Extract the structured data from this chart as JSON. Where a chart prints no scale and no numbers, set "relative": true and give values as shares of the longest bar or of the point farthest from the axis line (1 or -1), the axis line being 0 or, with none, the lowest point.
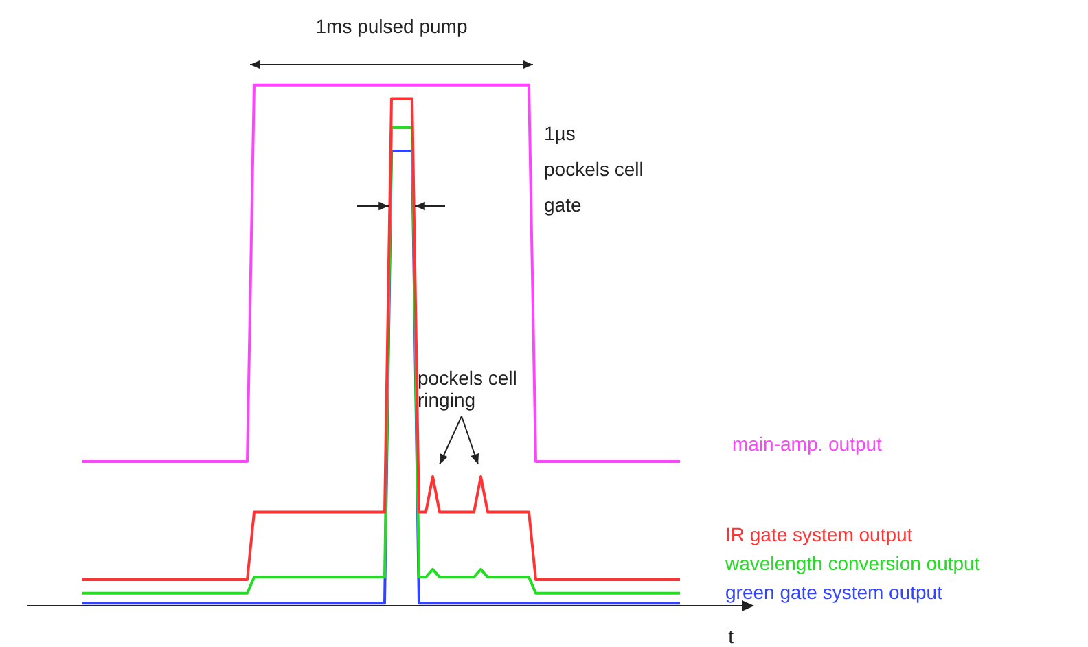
{
  "chart_data": {
    "type": "line",
    "relative": true,
    "xlabel": "t",
    "tick_labels": false,
    "grid": false,
    "marker": "none",
    "line_style": "solid",
    "categories": [
      null,
      null,
      null,
      null,
      null,
      null,
      null,
      null,
      null,
      null,
      null,
      null,
      null,
      null,
      null,
      null,
      null,
      null,
      null,
      null,
      null,
      null,
      null,
      null,
      null,
      null,
      null,
      null,
      null,
      null,
      null,
      null,
      null,
      null,
      null,
      null,
      null,
      null,
      null,
      null,
      null,
      null,
      null,
      null,
      null,
      null,
      null,
      null,
      null,
      null,
      null,
      null,
      null,
      null,
      null,
      null,
      null,
      null,
      null,
      null,
      null,
      null,
      null,
      null,
      null,
      null,
      null,
      null,
      null,
      null,
      null,
      null,
      null,
      null,
      null,
      null,
      null,
      null,
      null,
      null,
      null,
      null,
      null,
      null,
      null,
      null,
      null,
      null
    ],
    "series": [
      {
        "name": "main-amp. output",
        "color": "#ff44ff",
        "values": [
          0.277,
          0.277,
          0.277,
          0.277,
          0.277,
          0.277,
          0.277,
          0.277,
          0.277,
          0.277,
          0.277,
          0.277,
          0.277,
          0.277,
          0.277,
          0.277,
          0.277,
          0.277,
          0.277,
          0.277,
          0.277,
          0.277,
          0.277,
          0.277,
          0.277,
          1,
          1,
          1,
          1,
          1,
          1,
          1,
          1,
          1,
          1,
          1,
          1,
          1,
          1,
          1,
          1,
          1,
          1,
          1,
          1,
          1,
          1,
          1,
          1,
          1,
          1,
          1,
          1,
          1,
          1,
          1,
          1,
          1,
          1,
          1,
          1,
          1,
          1,
          1,
          1,
          1,
          0.277,
          0.277,
          0.277,
          0.277,
          0.277,
          0.277,
          0.277,
          0.277,
          0.277,
          0.277,
          0.277,
          0.277,
          0.277,
          0.277,
          0.277,
          0.277,
          0.277,
          0.277,
          0.277,
          0.277,
          0.277,
          0.277
        ]
      },
      {
        "name": "IR gate system output",
        "color": "#ff3333",
        "values": [
          0.05,
          0.05,
          0.05,
          0.05,
          0.05,
          0.05,
          0.05,
          0.05,
          0.05,
          0.05,
          0.05,
          0.05,
          0.05,
          0.05,
          0.05,
          0.05,
          0.05,
          0.05,
          0.05,
          0.05,
          0.05,
          0.05,
          0.05,
          0.05,
          0.05,
          0.18,
          0.18,
          0.18,
          0.18,
          0.18,
          0.18,
          0.18,
          0.18,
          0.18,
          0.18,
          0.18,
          0.18,
          0.18,
          0.18,
          0.18,
          0.18,
          0.18,
          0.18,
          0.18,
          0.18,
          0.974,
          0.974,
          0.974,
          0.974,
          0.18,
          0.18,
          0.248,
          0.18,
          0.18,
          0.18,
          0.18,
          0.18,
          0.18,
          0.248,
          0.18,
          0.18,
          0.18,
          0.18,
          0.18,
          0.18,
          0.18,
          0.05,
          0.05,
          0.05,
          0.05,
          0.05,
          0.05,
          0.05,
          0.05,
          0.05,
          0.05,
          0.05,
          0.05,
          0.05,
          0.05,
          0.05,
          0.05,
          0.05,
          0.05,
          0.05,
          0.05,
          0.05,
          0.05
        ]
      },
      {
        "name": "wavelength conversion output",
        "color": "#22dd22",
        "values": [
          0.024,
          0.024,
          0.024,
          0.024,
          0.024,
          0.024,
          0.024,
          0.024,
          0.024,
          0.024,
          0.024,
          0.024,
          0.024,
          0.024,
          0.024,
          0.024,
          0.024,
          0.024,
          0.024,
          0.024,
          0.024,
          0.024,
          0.024,
          0.024,
          0.024,
          0.055,
          0.055,
          0.055,
          0.055,
          0.055,
          0.055,
          0.055,
          0.055,
          0.055,
          0.055,
          0.055,
          0.055,
          0.055,
          0.055,
          0.055,
          0.055,
          0.055,
          0.055,
          0.055,
          0.055,
          0.918,
          0.918,
          0.918,
          0.918,
          0.055,
          0.055,
          0.07,
          0.055,
          0.055,
          0.055,
          0.055,
          0.055,
          0.055,
          0.07,
          0.055,
          0.055,
          0.055,
          0.055,
          0.055,
          0.055,
          0.055,
          0.024,
          0.024,
          0.024,
          0.024,
          0.024,
          0.024,
          0.024,
          0.024,
          0.024,
          0.024,
          0.024,
          0.024,
          0.024,
          0.024,
          0.024,
          0.024,
          0.024,
          0.024,
          0.024,
          0.024,
          0.024,
          0.024
        ]
      },
      {
        "name": "green gate system output",
        "color": "#3344ff",
        "values": [
          0.005,
          0.005,
          0.005,
          0.005,
          0.005,
          0.005,
          0.005,
          0.005,
          0.005,
          0.005,
          0.005,
          0.005,
          0.005,
          0.005,
          0.005,
          0.005,
          0.005,
          0.005,
          0.005,
          0.005,
          0.005,
          0.005,
          0.005,
          0.005,
          0.005,
          0.005,
          0.005,
          0.005,
          0.005,
          0.005,
          0.005,
          0.005,
          0.005,
          0.005,
          0.005,
          0.005,
          0.005,
          0.005,
          0.005,
          0.005,
          0.005,
          0.005,
          0.005,
          0.005,
          0.005,
          0.873,
          0.873,
          0.873,
          0.873,
          0.005,
          0.005,
          0.005,
          0.005,
          0.005,
          0.005,
          0.005,
          0.005,
          0.005,
          0.005,
          0.005,
          0.005,
          0.005,
          0.005,
          0.005,
          0.005,
          0.005,
          0.005,
          0.005,
          0.005,
          0.005,
          0.005,
          0.005,
          0.005,
          0.005,
          0.005,
          0.005,
          0.005,
          0.005,
          0.005,
          0.005,
          0.005,
          0.005,
          0.005,
          0.005,
          0.005,
          0.005,
          0.005,
          0.005
        ]
      }
    ],
    "annotations": [
      "1ms pulsed pump",
      "1µs\npockels cell\ngate",
      "pockels cell ringing"
    ]
  }
}
